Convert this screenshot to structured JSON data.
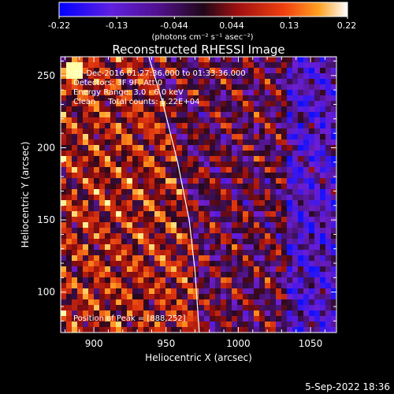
{
  "colorbar": {
    "ticks": [
      "-0.22",
      "-0.13",
      "-0.044",
      "0.044",
      "0.13",
      "0.22"
    ],
    "unit_label": "(photons cm⁻² s⁻¹ asec⁻²)"
  },
  "chart_data": {
    "type": "heatmap",
    "title": "Reconstructed RHESSI Image",
    "xlabel": "Heliocentric X (arcsec)",
    "ylabel": "Heliocentric Y (arcsec)",
    "xlim": [
      877,
      1068
    ],
    "ylim": [
      72,
      263
    ],
    "x_ticks": [
      900,
      950,
      1000,
      1050
    ],
    "y_ticks": [
      100,
      150,
      200,
      250
    ],
    "color_range": [
      -0.22,
      0.22
    ],
    "colormap": [
      "#1010ff",
      "#8020d0",
      "#2a0a28",
      "#9a1010",
      "#e03a10",
      "#ff9a20",
      "#ffffa0"
    ],
    "peak": [
      888,
      252
    ],
    "limb": {
      "x": [
        938,
        948,
        958,
        966,
        970,
        973
      ],
      "y": [
        263,
        230,
        190,
        150,
        115,
        72
      ]
    },
    "annotations": [
      "12-Dec-2016 01:27:36.000 to 01:33:36.000",
      "Detectors: 3F 9F, Att 0",
      "Energy Range: 3.0 - 6.0 keV",
      "Clean     Total counts: 1.22E+04",
      "Position of Peak = [888,252]"
    ]
  },
  "footer": {
    "date": "5-Sep-2022 18:36"
  }
}
